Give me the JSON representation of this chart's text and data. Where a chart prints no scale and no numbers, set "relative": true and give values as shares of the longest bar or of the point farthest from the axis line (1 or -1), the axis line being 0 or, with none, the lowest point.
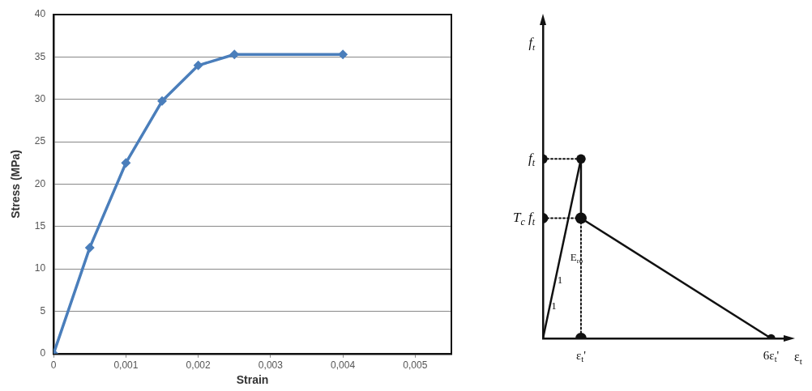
{
  "chart_data": [
    {
      "type": "line",
      "xlabel": "Strain",
      "ylabel": "Stress (MPa)",
      "series": [
        {
          "color": "#4a7ebb",
          "x": [
            0,
            0.0005,
            0.001,
            0.0015,
            0.002,
            0.0025,
            0.004
          ],
          "values": [
            0,
            12.5,
            22.5,
            29.8,
            34,
            35.3,
            35.3
          ]
        }
      ],
      "xlim": [
        0,
        0.0055
      ],
      "xticks": [
        0,
        {
          "value": 0.001,
          "label": "0,001"
        },
        {
          "value": 0.002,
          "label": "0,002"
        },
        {
          "value": 0.003,
          "label": "0,003"
        },
        {
          "value": 0.004,
          "label": "0,004"
        },
        {
          "value": 0.005,
          "label": "0,005"
        }
      ],
      "ylim": [
        0,
        40
      ],
      "yticks": [
        0,
        5,
        10,
        15,
        20,
        25,
        30,
        35,
        40
      ],
      "grid": "y",
      "marker": "diamond",
      "line_style": "solid",
      "legend": false
    },
    {
      "type": "line",
      "relative": true,
      "xlabel": "ε$_{t}$",
      "ylabel": "f$_{t}$",
      "categories": [
        null,
        "ε$_{t}$'",
        null,
        null,
        null,
        null,
        "6ε$_{t}$'"
      ],
      "series": [
        {
          "color": "#111111",
          "values": [
            0,
            1,
            null,
            null,
            null,
            null,
            null
          ],
          "line_style": "solid"
        },
        {
          "color": "#111111",
          "x": [
            "ε$_{t}$'",
            "ε$_{t}$'"
          ],
          "values": [
            1,
            0.67
          ],
          "line_style": "solid"
        },
        {
          "color": "#111111",
          "x": [
            "ε$_{t}$'",
            "6ε$_{t}$'"
          ],
          "values": [
            0.67,
            0
          ],
          "marker": "circle",
          "line_style": "solid"
        },
        {
          "color": "#111111",
          "values": [
            1,
            1,
            null,
            null,
            null,
            null,
            null
          ],
          "marker": "circle",
          "line_style": "dotted"
        },
        {
          "color": "#111111",
          "values": [
            0.67,
            0.67,
            null,
            null,
            null,
            null,
            null
          ],
          "marker": "circle",
          "line_style": "dotted"
        },
        {
          "color": "#111111",
          "x": [
            "ε$_{t}$'",
            "ε$_{t}$'"
          ],
          "values": [
            0.67,
            0
          ],
          "marker": "circle",
          "line_style": "dotted"
        }
      ],
      "annotations": [
        "f$_{t}$",
        "T$_{c}$ f$_{t}$",
        "E$_{ro}$",
        "1",
        "1"
      ],
      "grid": false,
      "legend": false
    }
  ]
}
